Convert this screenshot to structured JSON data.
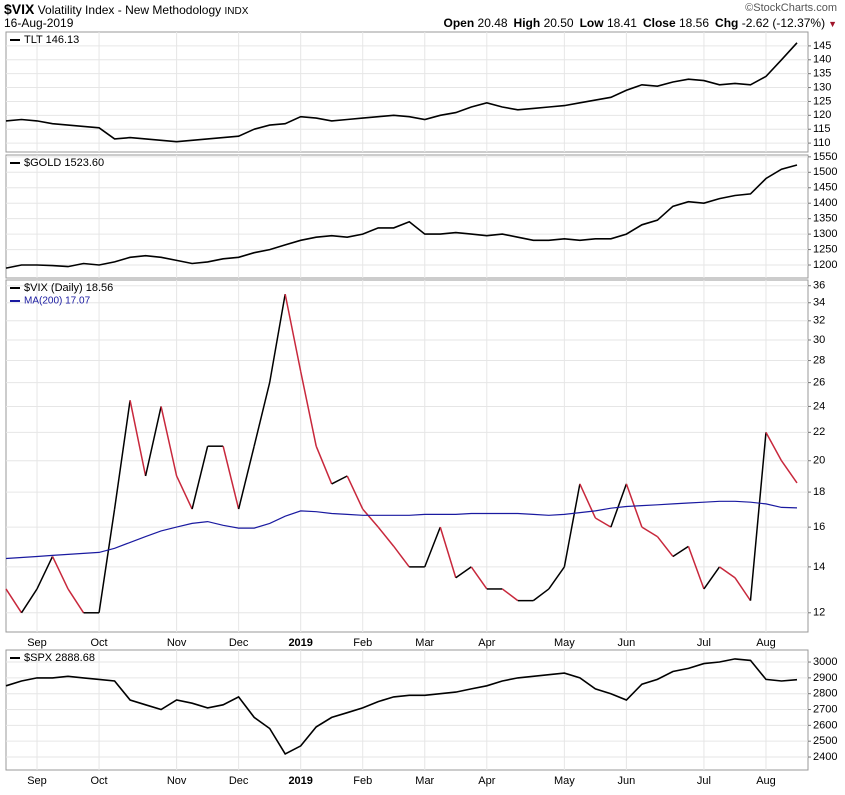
{
  "header": {
    "symbol": "$VIX",
    "name": "Volatility Index - New Methodology",
    "exchange": "INDX",
    "date": "16-Aug-2019",
    "watermark": "©StockCharts.com",
    "quote": [
      {
        "label": "Open",
        "value": "20.48"
      },
      {
        "label": "High",
        "value": "20.50"
      },
      {
        "label": "Low",
        "value": "18.41"
      },
      {
        "label": "Close",
        "value": "18.56"
      },
      {
        "label": "Chg",
        "value": "-2.62 (-12.37%)"
      }
    ]
  },
  "chart_data": [
    {
      "type": "line",
      "ylim": [
        106.8,
        150
      ],
      "yticks": [
        110,
        115,
        120,
        125,
        130,
        135,
        140,
        145
      ],
      "grid": true,
      "series": [
        {
          "name": "TLT 146.13",
          "color": "#000000",
          "values": [
            118,
            118.5,
            118,
            117,
            116.5,
            116,
            115.5,
            111.5,
            112,
            111.5,
            111,
            110.5,
            111,
            111.5,
            112,
            112.5,
            115,
            116.5,
            117,
            119.5,
            119,
            118,
            118.5,
            119,
            119.5,
            120,
            119.5,
            118.5,
            120,
            121,
            123,
            124.5,
            123,
            122,
            122.5,
            123,
            123.5,
            124.5,
            125.5,
            126.5,
            129,
            131,
            130.5,
            132,
            133,
            132.5,
            131,
            131.5,
            131,
            134,
            140,
            146.1
          ]
        }
      ]
    },
    {
      "type": "line",
      "ylim": [
        1158,
        1556
      ],
      "yticks": [
        1200,
        1250,
        1300,
        1350,
        1400,
        1450,
        1500,
        1550
      ],
      "grid": true,
      "series": [
        {
          "name": "$GOLD 1523.60",
          "color": "#000000",
          "values": [
            1190,
            1200,
            1200,
            1198,
            1195,
            1205,
            1200,
            1210,
            1225,
            1230,
            1225,
            1215,
            1205,
            1210,
            1220,
            1225,
            1240,
            1250,
            1265,
            1280,
            1290,
            1295,
            1290,
            1300,
            1320,
            1320,
            1340,
            1300,
            1300,
            1305,
            1300,
            1295,
            1300,
            1290,
            1280,
            1280,
            1285,
            1280,
            1285,
            1285,
            1300,
            1330,
            1345,
            1390,
            1405,
            1400,
            1415,
            1425,
            1430,
            1480,
            1510,
            1523.6
          ]
        }
      ]
    },
    {
      "type": "line",
      "log_scale": true,
      "ylim": [
        11.25,
        36.7
      ],
      "yticks": [
        12,
        14,
        16,
        18,
        20,
        22,
        24,
        26,
        28,
        30,
        32,
        34,
        36
      ],
      "grid": true,
      "categories": [
        null,
        null,
        "Sep",
        null,
        null,
        null,
        "Oct",
        null,
        null,
        null,
        null,
        "Nov",
        null,
        null,
        null,
        "Dec",
        null,
        null,
        null,
        "2019",
        null,
        null,
        null,
        "Feb",
        null,
        null,
        null,
        "Mar",
        null,
        null,
        null,
        "Apr",
        null,
        null,
        null,
        null,
        "May",
        null,
        null,
        null,
        "Jun",
        null,
        null,
        null,
        null,
        "Jul",
        null,
        null,
        null,
        "Aug",
        null,
        null
      ],
      "series": [
        {
          "name": "$VIX (Daily) 18.56",
          "color": "#000000",
          "down_color": "#c8283c",
          "values": [
            13,
            12,
            13,
            14.5,
            13,
            12,
            12,
            17,
            24.5,
            19,
            24,
            19,
            17,
            21,
            21,
            17,
            21,
            26,
            35,
            27,
            21,
            18.5,
            19,
            17,
            16,
            15,
            14,
            14,
            16,
            13.5,
            14,
            13,
            13,
            12.5,
            12.5,
            13,
            14,
            18.5,
            16.5,
            16,
            18.5,
            16,
            15.5,
            14.5,
            15,
            13,
            14,
            13.5,
            12.5,
            22,
            20,
            18.56
          ]
        },
        {
          "name": "MA(200) 17.07",
          "color": "#1a1aa0",
          "values": [
            14.4,
            14.45,
            14.5,
            14.55,
            14.6,
            14.65,
            14.7,
            14.9,
            15.2,
            15.5,
            15.8,
            16.0,
            16.2,
            16.3,
            16.1,
            15.95,
            15.95,
            16.2,
            16.6,
            16.9,
            16.85,
            16.75,
            16.7,
            16.65,
            16.65,
            16.65,
            16.65,
            16.7,
            16.7,
            16.7,
            16.75,
            16.75,
            16.75,
            16.75,
            16.7,
            16.65,
            16.7,
            16.8,
            16.9,
            17.05,
            17.15,
            17.2,
            17.25,
            17.3,
            17.35,
            17.4,
            17.45,
            17.45,
            17.4,
            17.3,
            17.1,
            17.07
          ]
        }
      ]
    },
    {
      "type": "line",
      "ylim": [
        2318,
        3076
      ],
      "yticks": [
        2400,
        2500,
        2600,
        2700,
        2800,
        2900,
        3000
      ],
      "grid": true,
      "categories": [
        null,
        null,
        "Sep",
        null,
        null,
        null,
        "Oct",
        null,
        null,
        null,
        null,
        "Nov",
        null,
        null,
        null,
        "Dec",
        null,
        null,
        null,
        "2019",
        null,
        null,
        null,
        "Feb",
        null,
        null,
        null,
        "Mar",
        null,
        null,
        null,
        "Apr",
        null,
        null,
        null,
        null,
        "May",
        null,
        null,
        null,
        "Jun",
        null,
        null,
        null,
        null,
        "Jul",
        null,
        null,
        null,
        "Aug",
        null,
        null
      ],
      "series": [
        {
          "name": "$SPX 2888.68",
          "color": "#000000",
          "values": [
            2850,
            2880,
            2900,
            2900,
            2910,
            2900,
            2890,
            2880,
            2760,
            2730,
            2700,
            2760,
            2740,
            2710,
            2730,
            2780,
            2650,
            2580,
            2420,
            2470,
            2590,
            2650,
            2680,
            2710,
            2750,
            2780,
            2790,
            2790,
            2800,
            2810,
            2830,
            2850,
            2880,
            2900,
            2910,
            2920,
            2930,
            2900,
            2830,
            2800,
            2760,
            2860,
            2890,
            2940,
            2960,
            2990,
            3000,
            3020,
            3010,
            2890,
            2880,
            2888.68
          ]
        }
      ]
    }
  ]
}
